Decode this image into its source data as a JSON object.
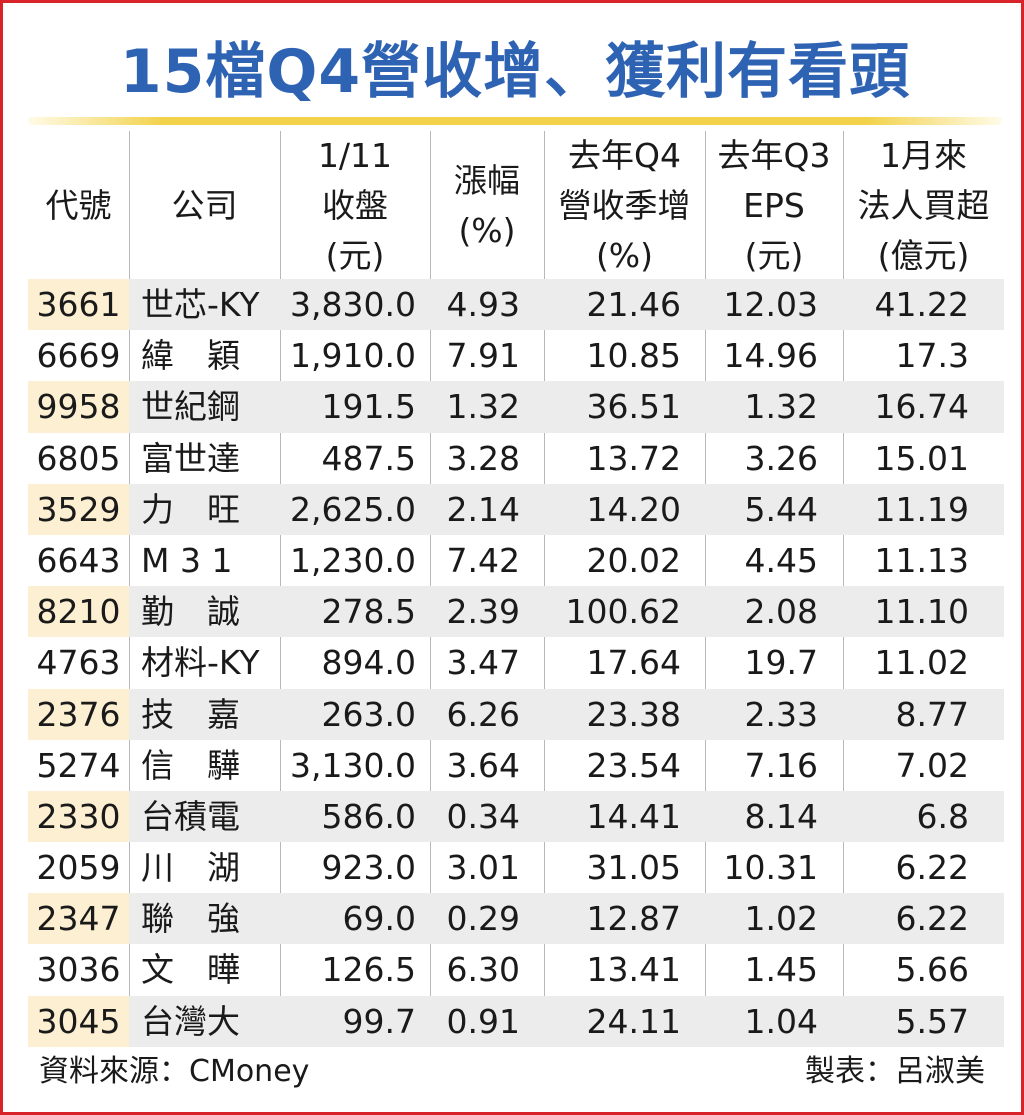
{
  "title": "15檔Q4營收增、獲利有看頭",
  "headers": [
    {
      "l1": "代號",
      "l2": "",
      "l3": ""
    },
    {
      "l1": "公司",
      "l2": "",
      "l3": ""
    },
    {
      "l1": "1/11",
      "l2": "收盤",
      "l3": "(元)"
    },
    {
      "l1": "漲幅",
      "l2": "(%)",
      "l3": ""
    },
    {
      "l1": "去年Q4",
      "l2": "營收季增",
      "l3": "(%)"
    },
    {
      "l1": "去年Q3",
      "l2": "EPS",
      "l3": "(元)"
    },
    {
      "l1": "1月來",
      "l2": "法人買超",
      "l3": "(億元)"
    }
  ],
  "rows": [
    {
      "code": "3661",
      "company": "世芯-KY",
      "close": "3,830.0",
      "change": "4.93",
      "q4_growth": "21.46",
      "q3_eps": "12.03",
      "net_buy": "41.22"
    },
    {
      "code": "6669",
      "company": "緯　穎",
      "close": "1,910.0",
      "change": "7.91",
      "q4_growth": "10.85",
      "q3_eps": "14.96",
      "net_buy": "17.3"
    },
    {
      "code": "9958",
      "company": "世紀鋼",
      "close": "191.5",
      "change": "1.32",
      "q4_growth": "36.51",
      "q3_eps": "1.32",
      "net_buy": "16.74"
    },
    {
      "code": "6805",
      "company": "富世達",
      "close": "487.5",
      "change": "3.28",
      "q4_growth": "13.72",
      "q3_eps": "3.26",
      "net_buy": "15.01"
    },
    {
      "code": "3529",
      "company": "力　旺",
      "close": "2,625.0",
      "change": "2.14",
      "q4_growth": "14.20",
      "q3_eps": "5.44",
      "net_buy": "11.19"
    },
    {
      "code": "6643",
      "company": "M 3 1",
      "close": "1,230.0",
      "change": "7.42",
      "q4_growth": "20.02",
      "q3_eps": "4.45",
      "net_buy": "11.13"
    },
    {
      "code": "8210",
      "company": "勤　誠",
      "close": "278.5",
      "change": "2.39",
      "q4_growth": "100.62",
      "q3_eps": "2.08",
      "net_buy": "11.10"
    },
    {
      "code": "4763",
      "company": "材料-KY",
      "close": "894.0",
      "change": "3.47",
      "q4_growth": "17.64",
      "q3_eps": "19.7",
      "net_buy": "11.02"
    },
    {
      "code": "2376",
      "company": "技　嘉",
      "close": "263.0",
      "change": "6.26",
      "q4_growth": "23.38",
      "q3_eps": "2.33",
      "net_buy": "8.77"
    },
    {
      "code": "5274",
      "company": "信　驊",
      "close": "3,130.0",
      "change": "3.64",
      "q4_growth": "23.54",
      "q3_eps": "7.16",
      "net_buy": "7.02"
    },
    {
      "code": "2330",
      "company": "台積電",
      "close": "586.0",
      "change": "0.34",
      "q4_growth": "14.41",
      "q3_eps": "8.14",
      "net_buy": "6.8"
    },
    {
      "code": "2059",
      "company": "川　湖",
      "close": "923.0",
      "change": "3.01",
      "q4_growth": "31.05",
      "q3_eps": "10.31",
      "net_buy": "6.22"
    },
    {
      "code": "2347",
      "company": "聯　強",
      "close": "69.0",
      "change": "0.29",
      "q4_growth": "12.87",
      "q3_eps": "1.02",
      "net_buy": "6.22"
    },
    {
      "code": "3036",
      "company": "文　曄",
      "close": "126.5",
      "change": "6.30",
      "q4_growth": "13.41",
      "q3_eps": "1.45",
      "net_buy": "5.66"
    },
    {
      "code": "3045",
      "company": "台灣大",
      "close": "99.7",
      "change": "0.91",
      "q4_growth": "24.11",
      "q3_eps": "1.04",
      "net_buy": "5.57"
    }
  ],
  "footer": {
    "source": "資料來源：CMoney",
    "author": "製表：呂淑美"
  },
  "colors": {
    "title": "#2e63b4",
    "border": "#d9232a",
    "rule": "#f2d24a",
    "row_shade": "#ececec",
    "code_shade": "#fcefd2"
  }
}
